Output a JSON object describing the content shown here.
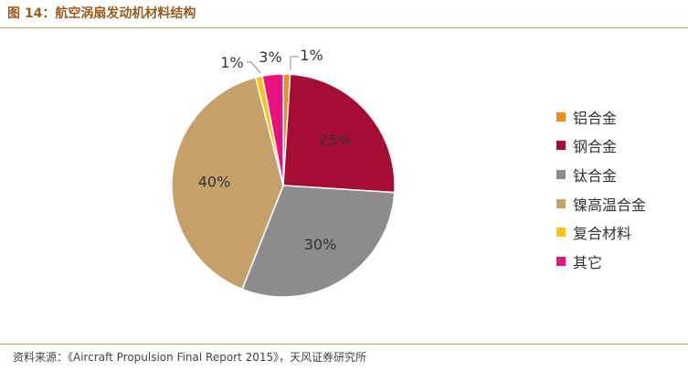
{
  "figure": {
    "title": "图 14：航空涡扇发动机材料结构",
    "source": "资料来源：《Aircraft Propulsion Final Report 2015》，天风证券研究所"
  },
  "chart_data": {
    "type": "pie",
    "title": "",
    "legend_position": "right",
    "slices": [
      {
        "label": "铝合金",
        "value": 1,
        "pct_label": "1%",
        "color": "#f28c1c"
      },
      {
        "label": "钢合金",
        "value": 25,
        "pct_label": "25%",
        "color": "#a50d35"
      },
      {
        "label": "钛合金",
        "value": 30,
        "pct_label": "30%",
        "color": "#8c8c8c"
      },
      {
        "label": "镍高温合金",
        "value": 40,
        "pct_label": "40%",
        "color": "#c5a06b"
      },
      {
        "label": "复合材料",
        "value": 1,
        "pct_label": "1%",
        "color": "#f5c518"
      },
      {
        "label": "其它",
        "value": 3,
        "pct_label": "3%",
        "color": "#e8127f"
      }
    ]
  }
}
